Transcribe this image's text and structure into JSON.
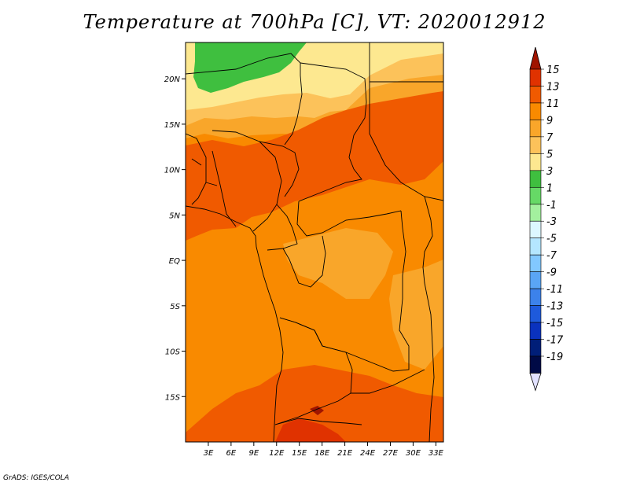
{
  "title": "Temperature at 700hPa [C], VT: 2020012912",
  "credit": "GrADS: IGES/COLA",
  "map": {
    "lat_range": [
      -20,
      24
    ],
    "lon_range": [
      0,
      34
    ],
    "lat_ticks": [
      {
        "value": 20,
        "label": "20N"
      },
      {
        "value": 15,
        "label": "15N"
      },
      {
        "value": 10,
        "label": "10N"
      },
      {
        "value": 5,
        "label": "5N"
      },
      {
        "value": 0,
        "label": "EQ"
      },
      {
        "value": -5,
        "label": "5S"
      },
      {
        "value": -10,
        "label": "10S"
      },
      {
        "value": -15,
        "label": "15S"
      }
    ],
    "lon_ticks": [
      {
        "value": 3,
        "label": "3E"
      },
      {
        "value": 6,
        "label": "6E"
      },
      {
        "value": 9,
        "label": "9E"
      },
      {
        "value": 12,
        "label": "12E"
      },
      {
        "value": 15,
        "label": "15E"
      },
      {
        "value": 18,
        "label": "18E"
      },
      {
        "value": 21,
        "label": "21E"
      },
      {
        "value": 24,
        "label": "24E"
      },
      {
        "value": 27,
        "label": "27E"
      },
      {
        "value": 30,
        "label": "30E"
      },
      {
        "value": 33,
        "label": "33E"
      }
    ]
  },
  "colorbar": {
    "labels": [
      "15",
      "13",
      "11",
      "9",
      "7",
      "5",
      "3",
      "1",
      "-1",
      "-3",
      "-5",
      "-7",
      "-9",
      "-11",
      "-13",
      "-15",
      "-17",
      "-19"
    ],
    "colors": [
      "#a01400",
      "#e03200",
      "#f05a00",
      "#f98a00",
      "#f9a62a",
      "#fcc25a",
      "#fde890",
      "#3fbf3f",
      "#66d966",
      "#a3f09e",
      "#dcf7ff",
      "#b4e6ff",
      "#82c8ff",
      "#5aa5f5",
      "#3c82eb",
      "#1e5adc",
      "#0a32be",
      "#001e78",
      "#000a46",
      "#e1e1ff"
    ],
    "top_arrow_color": "#a01400",
    "bottom_arrow_color": "#e1e1ff"
  },
  "field": {
    "base_color": "#f98a00",
    "colors": {
      "warm_11": "#f05a00",
      "warm_13": "#e03200",
      "mid_7": "#f9a62a",
      "light_5": "#fcc25a",
      "pale_3": "#fde890",
      "green_1": "#3fbf3f",
      "dark": "#a01400"
    }
  }
}
